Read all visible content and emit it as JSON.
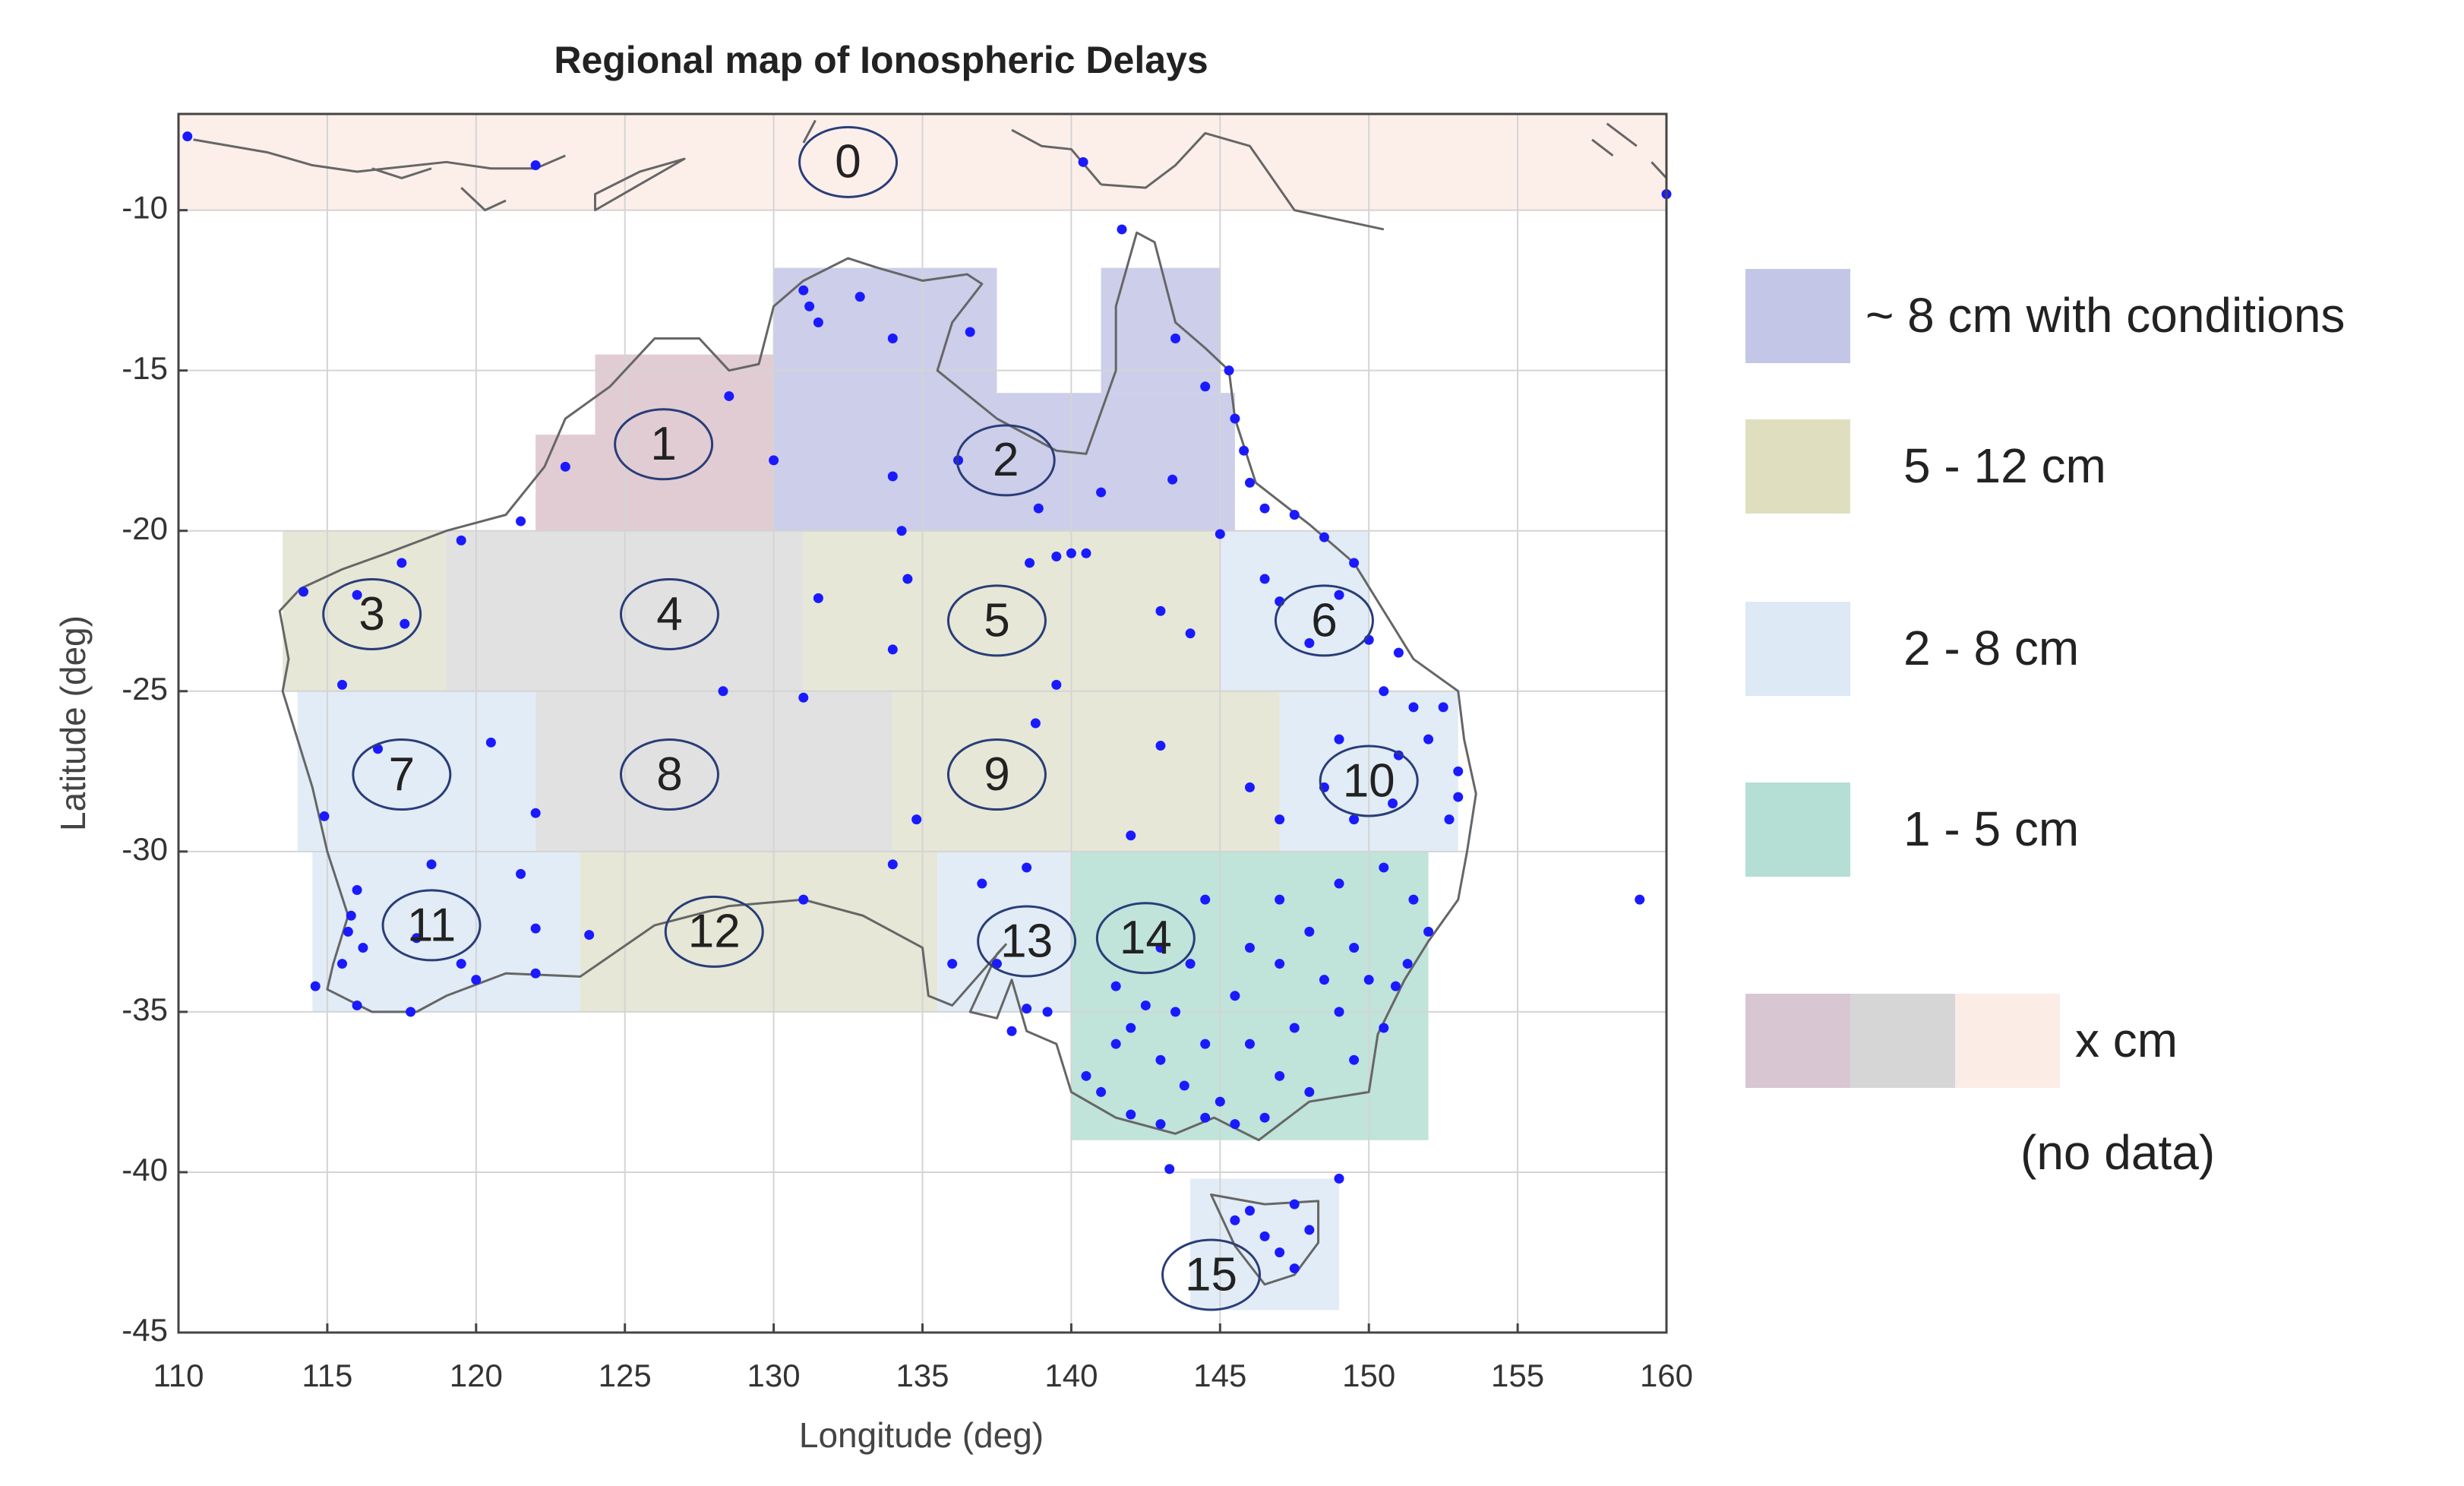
{
  "chart_data": {
    "type": "region-map",
    "title": "Regional map of Ionospheric Delays",
    "x_label": "Longitude (deg)",
    "y_label": "Latitude (deg)",
    "xlim": [
      110,
      160
    ],
    "ylim": [
      -45,
      -7
    ],
    "xticks": [
      110,
      115,
      120,
      125,
      130,
      135,
      140,
      145,
      150,
      155,
      160
    ],
    "yticks": [
      -10,
      -15,
      -20,
      -25,
      -30,
      -35,
      -40,
      -45
    ],
    "grid": true,
    "regions": [
      {
        "label": "0",
        "color": "#fbece6",
        "rects": [
          [
            110,
            160,
            -10,
            -7
          ]
        ],
        "label_at": [
          132.5,
          -8.5
        ]
      },
      {
        "label": "1",
        "color": "#dcc3cc",
        "rects": [
          [
            122,
            130,
            -20,
            -17
          ],
          [
            124,
            130,
            -17,
            -14.5
          ]
        ],
        "label_at": [
          126.3,
          -17.3
        ]
      },
      {
        "label": "2",
        "color": "#c3c6e6",
        "rects": [
          [
            130,
            137.5,
            -20,
            -11.8
          ],
          [
            137.5,
            145.5,
            -20,
            -15.7
          ],
          [
            141,
            145,
            -15.7,
            -11.8
          ]
        ],
        "label_at": [
          137.8,
          -17.8
        ]
      },
      {
        "label": "3",
        "color": "#e2e3cf",
        "rects": [
          [
            113.5,
            119,
            -25,
            -20
          ]
        ],
        "label_at": [
          116.5,
          -22.6
        ]
      },
      {
        "label": "4",
        "color": "#dcdcdc",
        "rects": [
          [
            119,
            131,
            -25,
            -20
          ]
        ],
        "label_at": [
          126.5,
          -22.6
        ]
      },
      {
        "label": "5",
        "color": "#e2e3cf",
        "rects": [
          [
            131,
            145,
            -25,
            -20
          ]
        ],
        "label_at": [
          137.5,
          -22.8
        ]
      },
      {
        "label": "6",
        "color": "#dde9f5",
        "rects": [
          [
            145,
            150,
            -25,
            -20
          ]
        ],
        "label_at": [
          148.5,
          -22.8
        ]
      },
      {
        "label": "7",
        "color": "#dde9f5",
        "rects": [
          [
            114,
            122,
            -30,
            -25
          ]
        ],
        "label_at": [
          117.5,
          -27.6
        ]
      },
      {
        "label": "8",
        "color": "#dcdcdc",
        "rects": [
          [
            122,
            134,
            -30,
            -25
          ]
        ],
        "label_at": [
          126.5,
          -27.6
        ]
      },
      {
        "label": "9",
        "color": "#e2e3cf",
        "rects": [
          [
            134,
            147,
            -30,
            -25
          ]
        ],
        "label_at": [
          137.5,
          -27.6
        ]
      },
      {
        "label": "10",
        "color": "#dde9f5",
        "rects": [
          [
            147,
            153,
            -30,
            -25
          ]
        ],
        "label_at": [
          150,
          -27.8
        ]
      },
      {
        "label": "11",
        "color": "#dde9f5",
        "rects": [
          [
            114.5,
            123.5,
            -35,
            -30
          ]
        ],
        "label_at": [
          118.5,
          -32.3
        ]
      },
      {
        "label": "12",
        "color": "#e2e3cf",
        "rects": [
          [
            123.5,
            135.5,
            -35,
            -30
          ]
        ],
        "label_at": [
          128,
          -32.5
        ]
      },
      {
        "label": "13",
        "color": "#dde9f5",
        "rects": [
          [
            135.5,
            140,
            -35,
            -30
          ]
        ],
        "label_at": [
          138.5,
          -32.8
        ]
      },
      {
        "label": "14",
        "color": "#b5ded4",
        "rects": [
          [
            140,
            152,
            -39,
            -30
          ]
        ],
        "label_at": [
          142.5,
          -32.7
        ]
      },
      {
        "label": "15",
        "color": "#dde9f5",
        "rects": [
          [
            144,
            149,
            -44.3,
            -40.2
          ]
        ],
        "label_at": [
          144.7,
          -43.2
        ]
      }
    ],
    "stations": [
      [
        110.3,
        -7.7
      ],
      [
        122,
        -8.6
      ],
      [
        140.4,
        -8.5
      ],
      [
        160,
        -9.5
      ],
      [
        131,
        -12.5
      ],
      [
        131.2,
        -13
      ],
      [
        132.9,
        -12.7
      ],
      [
        134,
        -14
      ],
      [
        136.6,
        -13.8
      ],
      [
        141.7,
        -10.6
      ],
      [
        143.5,
        -14
      ],
      [
        144.5,
        -15.5
      ],
      [
        145.3,
        -15
      ],
      [
        145.5,
        -16.5
      ],
      [
        145.8,
        -17.5
      ],
      [
        146,
        -18.5
      ],
      [
        146.5,
        -19.3
      ],
      [
        147.5,
        -19.5
      ],
      [
        148.5,
        -20.2
      ],
      [
        149.5,
        -21
      ],
      [
        128.5,
        -15.8
      ],
      [
        131.5,
        -13.5
      ],
      [
        130,
        -17.8
      ],
      [
        134,
        -18.3
      ],
      [
        136.2,
        -17.8
      ],
      [
        138.9,
        -19.3
      ],
      [
        143.4,
        -18.4
      ],
      [
        141,
        -18.8
      ],
      [
        123,
        -18
      ],
      [
        121.5,
        -19.7
      ],
      [
        119.5,
        -20.3
      ],
      [
        117.5,
        -21
      ],
      [
        114.2,
        -21.9
      ],
      [
        115.5,
        -24.8
      ],
      [
        116,
        -22
      ],
      [
        117.6,
        -22.9
      ],
      [
        134.3,
        -20
      ],
      [
        134.5,
        -21.5
      ],
      [
        131.5,
        -22.1
      ],
      [
        134,
        -23.7
      ],
      [
        138.6,
        -21
      ],
      [
        139.5,
        -20.8
      ],
      [
        140,
        -20.7
      ],
      [
        140.5,
        -20.7
      ],
      [
        143,
        -22.5
      ],
      [
        144,
        -23.2
      ],
      [
        145,
        -20.1
      ],
      [
        146.5,
        -21.5
      ],
      [
        147,
        -22.2
      ],
      [
        148,
        -23.5
      ],
      [
        149,
        -22
      ],
      [
        150,
        -23.4
      ],
      [
        151,
        -23.8
      ],
      [
        150.5,
        -25
      ],
      [
        151.5,
        -25.5
      ],
      [
        152.5,
        -25.5
      ],
      [
        152,
        -26.5
      ],
      [
        153,
        -27.5
      ],
      [
        153,
        -28.3
      ],
      [
        152.7,
        -29
      ],
      [
        151,
        -27
      ],
      [
        149,
        -26.5
      ],
      [
        148.5,
        -28
      ],
      [
        149.5,
        -29
      ],
      [
        147,
        -29
      ],
      [
        146,
        -28
      ],
      [
        150.8,
        -28.5
      ],
      [
        128.3,
        -25
      ],
      [
        131,
        -25.2
      ],
      [
        139.5,
        -24.8
      ],
      [
        138.8,
        -26
      ],
      [
        143,
        -26.7
      ],
      [
        142,
        -29.5
      ],
      [
        134.8,
        -29
      ],
      [
        120.5,
        -26.6
      ],
      [
        116.7,
        -26.8
      ],
      [
        114.9,
        -28.9
      ],
      [
        122,
        -28.8
      ],
      [
        121.5,
        -30.7
      ],
      [
        118.5,
        -30.4
      ],
      [
        116,
        -31.2
      ],
      [
        115.8,
        -32
      ],
      [
        115.7,
        -32.5
      ],
      [
        116.2,
        -33
      ],
      [
        115.5,
        -33.5
      ],
      [
        114.6,
        -34.2
      ],
      [
        116,
        -34.8
      ],
      [
        117.8,
        -35
      ],
      [
        118,
        -32.7
      ],
      [
        119.5,
        -33.5
      ],
      [
        120,
        -34
      ],
      [
        122,
        -33.8
      ],
      [
        122,
        -32.4
      ],
      [
        123.8,
        -32.6
      ],
      [
        131,
        -31.5
      ],
      [
        134,
        -30.4
      ],
      [
        137,
        -31
      ],
      [
        138.5,
        -30.5
      ],
      [
        136,
        -33.5
      ],
      [
        137.5,
        -33.5
      ],
      [
        138.5,
        -34.9
      ],
      [
        138,
        -35.6
      ],
      [
        139.2,
        -35
      ],
      [
        141.5,
        -34.2
      ],
      [
        143,
        -33
      ],
      [
        144.5,
        -31.5
      ],
      [
        147,
        -31.5
      ],
      [
        149,
        -31
      ],
      [
        150.5,
        -30.5
      ],
      [
        151.5,
        -31.5
      ],
      [
        152,
        -32.5
      ],
      [
        151.3,
        -33.5
      ],
      [
        150.9,
        -34.2
      ],
      [
        150.5,
        -35.5
      ],
      [
        149.5,
        -36.5
      ],
      [
        148,
        -37.5
      ],
      [
        146.5,
        -38.3
      ],
      [
        145,
        -37.8
      ],
      [
        144.5,
        -38.3
      ],
      [
        143,
        -38.5
      ],
      [
        142,
        -38.2
      ],
      [
        141,
        -37.5
      ],
      [
        140.5,
        -37
      ],
      [
        141.5,
        -36
      ],
      [
        143,
        -36.5
      ],
      [
        144.5,
        -36
      ],
      [
        146,
        -36
      ],
      [
        147.5,
        -35.5
      ],
      [
        148.5,
        -34
      ],
      [
        147,
        -33.5
      ],
      [
        145.5,
        -34.5
      ],
      [
        143.5,
        -35
      ],
      [
        142.5,
        -34.8
      ],
      [
        149.5,
        -33
      ],
      [
        148,
        -32.5
      ],
      [
        146,
        -33
      ],
      [
        144,
        -33.5
      ],
      [
        142,
        -35.5
      ],
      [
        143.8,
        -37.3
      ],
      [
        145.5,
        -38.5
      ],
      [
        147,
        -37
      ],
      [
        149,
        -35
      ],
      [
        150,
        -34
      ],
      [
        143.3,
        -39.9
      ],
      [
        149,
        -40.2
      ],
      [
        146,
        -41.2
      ],
      [
        147.5,
        -41
      ],
      [
        148,
        -41.8
      ],
      [
        147,
        -42.5
      ],
      [
        147.5,
        -43
      ],
      [
        146.5,
        -42
      ],
      [
        145.5,
        -41.5
      ],
      [
        159.1,
        -31.5
      ]
    ],
    "station_color": "#1a1aff",
    "legend": [
      {
        "name": "~ 8 cm with conditions",
        "colors": [
          "#c3c6e6"
        ]
      },
      {
        "name": "5 - 12 cm",
        "colors": [
          "#dfdfc0"
        ]
      },
      {
        "name": "2 - 8 cm",
        "colors": [
          "#dde9f5"
        ]
      },
      {
        "name": "1 - 5 cm",
        "colors": [
          "#b5ded4"
        ]
      },
      {
        "name": "x cm",
        "colors": [
          "#d8c6d2",
          "#d6d6d6",
          "#fbece6"
        ],
        "note": "(no data)"
      }
    ]
  }
}
